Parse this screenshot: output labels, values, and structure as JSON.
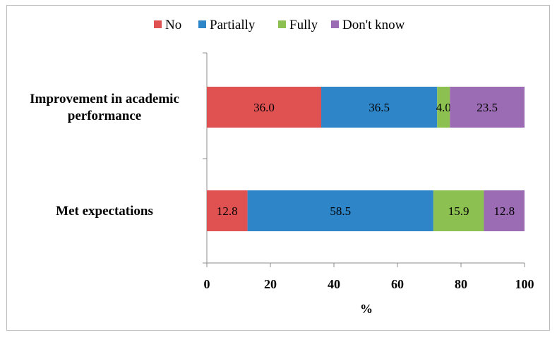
{
  "chart_data": {
    "type": "bar",
    "orientation": "horizontal",
    "stacked": true,
    "categories": [
      "Improvement in academic performance",
      "Met expectations"
    ],
    "category_lines": [
      [
        "Improvement in academic",
        "performance"
      ],
      [
        "Met expectations"
      ]
    ],
    "series": [
      {
        "name": "No",
        "color": "#e05252",
        "values": [
          36.0,
          12.8
        ]
      },
      {
        "name": "Partially",
        "color": "#2e86c9",
        "values": [
          36.5,
          58.5
        ]
      },
      {
        "name": "Fully",
        "color": "#8cc152",
        "values": [
          4.0,
          15.9
        ]
      },
      {
        "name": "Don't know",
        "color": "#9b6bb3",
        "values": [
          23.5,
          12.8
        ]
      }
    ],
    "data_labels": [
      [
        "36.0",
        "12.8"
      ],
      [
        "36.5",
        "58.5"
      ],
      [
        "4.0",
        "15.9"
      ],
      [
        "23.5",
        "12.8"
      ]
    ],
    "xlabel": "%",
    "xlim": [
      0,
      100
    ],
    "xticks": [
      0,
      20,
      40,
      60,
      80,
      100
    ],
    "xtick_labels": [
      "0",
      "20",
      "40",
      "60",
      "80",
      "100"
    ],
    "legend_position": "top",
    "grid": false
  }
}
